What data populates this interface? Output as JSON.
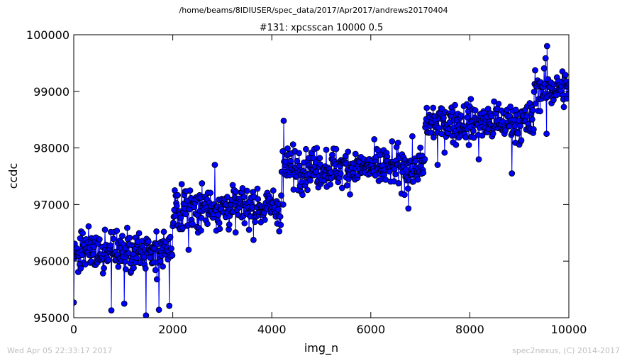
{
  "suptitle": "/home/beams/8IDIUSER/spec_data/2017/Apr2017/andrews20170404",
  "footer": {
    "timestamp": "Wed Apr 05 22:33:17 2017",
    "credit": "spec2nexus, (C) 2014-2017"
  },
  "colors": {
    "marker_fill": "#0000ff",
    "marker_edge": "#000000",
    "line": "#0000ff"
  },
  "chart_data": {
    "type": "line",
    "title": "#131: xpcsscan 10000 0.5",
    "xlabel": "img_n",
    "ylabel": "ccdc",
    "xlim": [
      0,
      10000
    ],
    "ylim": [
      95000,
      100000
    ],
    "grid": false,
    "marker": "circle",
    "xticks": [
      0,
      2000,
      4000,
      6000,
      8000,
      10000
    ],
    "xtick_labels": [
      "0",
      "2000",
      "4000",
      "6000",
      "8000",
      "10000"
    ],
    "yticks": [
      95000,
      96000,
      97000,
      98000,
      99000,
      100000
    ],
    "ytick_labels": [
      "95000",
      "96000",
      "97000",
      "98000",
      "99000",
      "100000"
    ],
    "series": [
      {
        "x_start": 0,
        "x_end": 10000,
        "n_points": 1000,
        "segments": [
          {
            "x_start": 0,
            "x_end": 2000,
            "mean": 96150,
            "spread": 320
          },
          {
            "x_start": 2000,
            "x_end": 4200,
            "mean": 96950,
            "spread": 330
          },
          {
            "x_start": 4200,
            "x_end": 7100,
            "mean": 97650,
            "spread": 320
          },
          {
            "x_start": 7100,
            "x_end": 9300,
            "mean": 98450,
            "spread": 320
          },
          {
            "x_start": 9300,
            "x_end": 10000,
            "mean": 99050,
            "spread": 320
          }
        ],
        "outliers": [
          {
            "x": 0,
            "y": 95270
          },
          {
            "x": 760,
            "y": 95130
          },
          {
            "x": 1020,
            "y": 95250
          },
          {
            "x": 1460,
            "y": 95040
          },
          {
            "x": 1720,
            "y": 95140
          },
          {
            "x": 1930,
            "y": 95210
          },
          {
            "x": 2320,
            "y": 96200
          },
          {
            "x": 2850,
            "y": 97700
          },
          {
            "x": 4240,
            "y": 98480
          },
          {
            "x": 4230,
            "y": 97000
          },
          {
            "x": 6760,
            "y": 96930
          },
          {
            "x": 7350,
            "y": 97700
          },
          {
            "x": 8180,
            "y": 97800
          },
          {
            "x": 8850,
            "y": 97550
          },
          {
            "x": 9550,
            "y": 98250
          },
          {
            "x": 9560,
            "y": 99800
          }
        ]
      }
    ]
  }
}
